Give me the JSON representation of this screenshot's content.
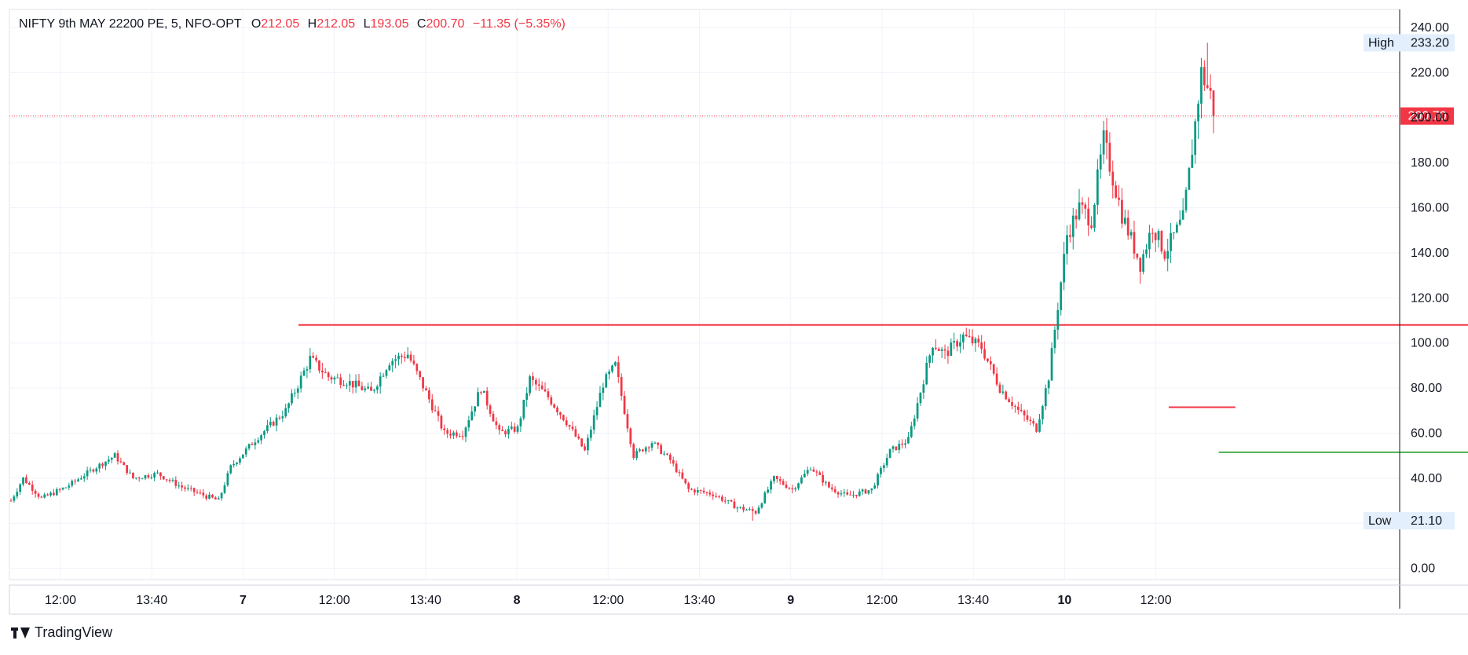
{
  "header": {
    "symbol": "NIFTY 9th MAY 22200 PE, 5, NFO-OPT",
    "open_label": "O",
    "open": "212.05",
    "high_label": "H",
    "high": "212.05",
    "low_label": "L",
    "low": "193.05",
    "close_label": "C",
    "close": "200.70",
    "change": "−11.35 (−5.35%)"
  },
  "brand": {
    "name": "TradingView"
  },
  "colors": {
    "up": "#089981",
    "down": "#f23645",
    "resistance": "#f23645",
    "support": "#4caf50",
    "grid": "#f0f3fa",
    "text": "#131722"
  },
  "chart_data": {
    "type": "candlestick",
    "ylim": [
      -5,
      248
    ],
    "y_ticks": [
      "240.00",
      "220.00",
      "200.00",
      "180.00",
      "160.00",
      "140.00",
      "120.00",
      "100.00",
      "80.00",
      "60.00",
      "40.00",
      "20.00",
      "0.00"
    ],
    "x_ticks": [
      "12:00",
      "13:40",
      "7",
      "12:00",
      "13:40",
      "8",
      "12:00",
      "13:40",
      "9",
      "12:00",
      "13:40",
      "10",
      "12:00"
    ],
    "x_tick_bold": [
      false,
      false,
      true,
      false,
      false,
      true,
      false,
      false,
      true,
      false,
      false,
      true,
      false
    ],
    "last_price": {
      "value": 200.7,
      "label": "200.70"
    },
    "high_marker": {
      "label": "High",
      "value": 233.2,
      "text": "233.20"
    },
    "low_marker": {
      "label": "Low",
      "value": 21.1,
      "text": "21.10"
    },
    "anchors": [
      [
        0,
        30
      ],
      [
        4,
        40
      ],
      [
        10,
        31
      ],
      [
        18,
        36
      ],
      [
        28,
        45
      ],
      [
        34,
        50
      ],
      [
        40,
        40
      ],
      [
        48,
        42
      ],
      [
        56,
        36
      ],
      [
        64,
        32
      ],
      [
        68,
        30
      ],
      [
        72,
        45
      ],
      [
        80,
        57
      ],
      [
        90,
        70
      ],
      [
        98,
        93
      ],
      [
        104,
        85
      ],
      [
        110,
        83
      ],
      [
        118,
        78
      ],
      [
        124,
        92
      ],
      [
        130,
        95
      ],
      [
        136,
        78
      ],
      [
        142,
        60
      ],
      [
        148,
        60
      ],
      [
        154,
        80
      ],
      [
        160,
        60
      ],
      [
        166,
        62
      ],
      [
        170,
        84
      ],
      [
        176,
        76
      ],
      [
        182,
        65
      ],
      [
        188,
        52
      ],
      [
        194,
        82
      ],
      [
        198,
        90
      ],
      [
        204,
        50
      ],
      [
        210,
        56
      ],
      [
        216,
        48
      ],
      [
        222,
        35
      ],
      [
        230,
        33
      ],
      [
        238,
        27
      ],
      [
        244,
        25
      ],
      [
        250,
        40
      ],
      [
        256,
        35
      ],
      [
        262,
        45
      ],
      [
        268,
        36
      ],
      [
        274,
        32
      ],
      [
        282,
        35
      ],
      [
        288,
        52
      ],
      [
        294,
        57
      ],
      [
        302,
        100
      ],
      [
        306,
        95
      ],
      [
        312,
        103
      ],
      [
        318,
        98
      ],
      [
        324,
        80
      ],
      [
        330,
        70
      ],
      [
        336,
        62
      ],
      [
        340,
        85
      ],
      [
        346,
        148
      ],
      [
        350,
        160
      ],
      [
        354,
        155
      ],
      [
        358,
        190
      ],
      [
        364,
        157
      ],
      [
        370,
        135
      ],
      [
        374,
        152
      ],
      [
        378,
        140
      ],
      [
        384,
        155
      ],
      [
        386,
        175
      ],
      [
        390,
        220
      ],
      [
        393,
        210
      ],
      [
        394,
        200.7
      ]
    ],
    "resistance_line": {
      "value": 108.0,
      "x_start_day": 0.21,
      "x_end_day": 4.08
    },
    "support_line": {
      "value": 51.5,
      "x_start_day": 2.97,
      "x_end_day": 3.98
    },
    "mid_line": {
      "value": 71.5,
      "x_start_day": 2.82,
      "x_end_day": 3.02
    }
  }
}
